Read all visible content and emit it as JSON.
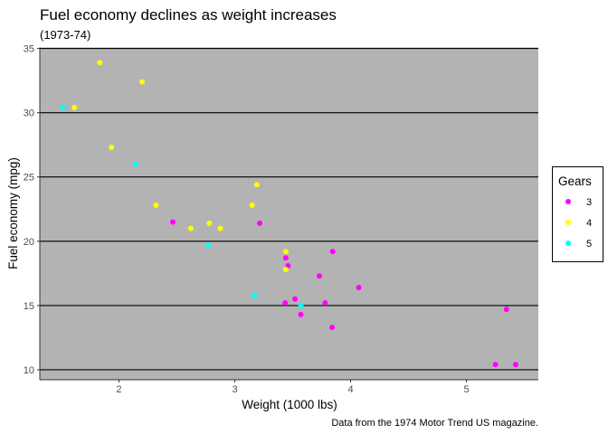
{
  "chart_data": {
    "type": "scatter",
    "title": "Fuel economy declines as weight increases",
    "subtitle": "(1973-74)",
    "caption": "Data from the 1974 Motor Trend US magazine.",
    "xlabel": "Weight (1000 lbs)",
    "ylabel": "Fuel economy (mpg)",
    "xlim": [
      1.317,
      5.62
    ],
    "ylim": [
      9.225,
      35.075
    ],
    "xticks": [
      "2",
      "3",
      "4",
      "5"
    ],
    "xtick_values": [
      2,
      3,
      4,
      5
    ],
    "yticks": [
      "10",
      "15",
      "20",
      "25",
      "30",
      "35"
    ],
    "ytick_values": [
      10,
      15,
      20,
      25,
      30,
      35
    ],
    "grid": "horizontal major only",
    "legend": {
      "title": "Gears",
      "position": "right",
      "entries": [
        {
          "label": "3",
          "color": "#ff00ff"
        },
        {
          "label": "4",
          "color": "#ffff00"
        },
        {
          "label": "5",
          "color": "#00ffff"
        }
      ]
    },
    "panel_color": "#b3b3b3",
    "points": [
      [
        2.62,
        21.0,
        4
      ],
      [
        2.875,
        21.0,
        4
      ],
      [
        2.32,
        22.8,
        4
      ],
      [
        3.215,
        21.4,
        3
      ],
      [
        3.44,
        18.7,
        3
      ],
      [
        3.46,
        18.1,
        3
      ],
      [
        3.57,
        14.3,
        3
      ],
      [
        3.19,
        24.4,
        4
      ],
      [
        3.15,
        22.8,
        4
      ],
      [
        3.44,
        19.2,
        4
      ],
      [
        3.44,
        17.8,
        4
      ],
      [
        4.07,
        16.4,
        3
      ],
      [
        3.73,
        17.3,
        3
      ],
      [
        3.78,
        15.2,
        3
      ],
      [
        5.25,
        10.4,
        3
      ],
      [
        5.424,
        10.4,
        3
      ],
      [
        5.345,
        14.7,
        3
      ],
      [
        2.2,
        32.4,
        4
      ],
      [
        1.615,
        30.4,
        4
      ],
      [
        1.835,
        33.9,
        4
      ],
      [
        2.465,
        21.5,
        3
      ],
      [
        3.52,
        15.5,
        3
      ],
      [
        3.435,
        15.2,
        3
      ],
      [
        3.84,
        13.3,
        3
      ],
      [
        3.845,
        19.2,
        3
      ],
      [
        1.935,
        27.3,
        4
      ],
      [
        2.14,
        26.0,
        5
      ],
      [
        1.513,
        30.4,
        5
      ],
      [
        3.17,
        15.8,
        5
      ],
      [
        2.77,
        19.7,
        5
      ],
      [
        3.57,
        15.0,
        5
      ],
      [
        2.78,
        21.4,
        4
      ]
    ]
  }
}
